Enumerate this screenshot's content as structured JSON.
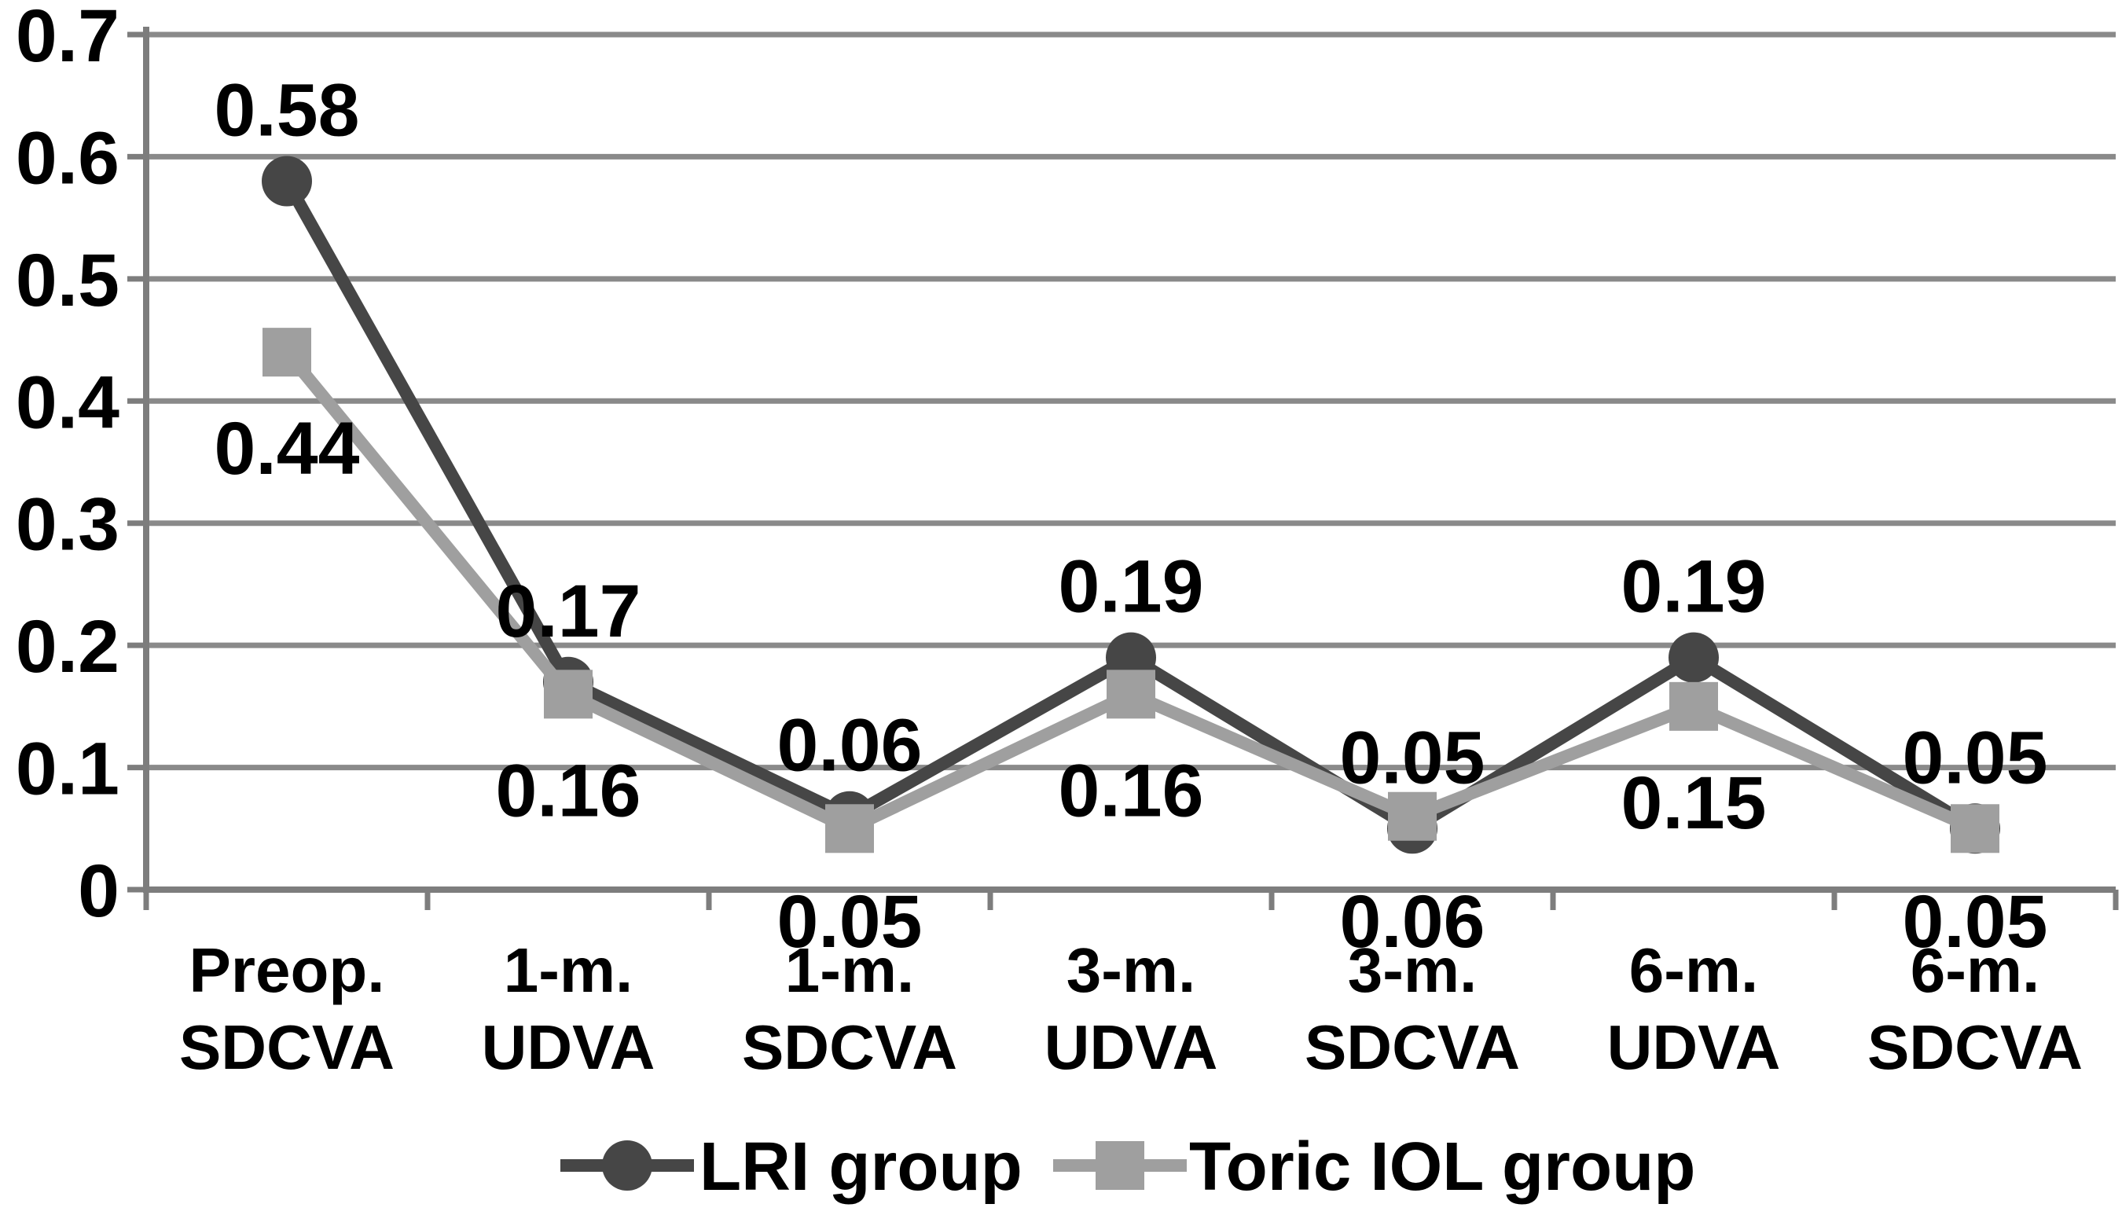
{
  "chart_data": {
    "type": "line",
    "title": "",
    "xlabel": "",
    "ylabel": "",
    "categories": [
      "Preop.\nSDCVA",
      "1-m.\nUDVA",
      "1-m.\nSDCVA",
      "3-m.\nUDVA",
      "3-m.\nSDCVA",
      "6-m.\nUDVA",
      "6-m.\nSDCVA"
    ],
    "series": [
      {
        "name": "LRI group",
        "marker": "circle",
        "color": "#464646",
        "values": [
          0.58,
          0.17,
          0.06,
          0.19,
          0.05,
          0.19,
          0.05
        ],
        "data_labels": [
          "0.58",
          "0.17",
          "0.06",
          "0.19",
          "0.05",
          "0.19",
          "0.05"
        ],
        "label_positions": [
          "above",
          "above",
          "above",
          "above",
          "above",
          "above",
          "above"
        ]
      },
      {
        "name": "Toric IOL group",
        "marker": "square",
        "color": "#9f9f9f",
        "values": [
          0.44,
          0.16,
          0.05,
          0.16,
          0.06,
          0.15,
          0.05
        ],
        "data_labels": [
          "0.44",
          "0.16",
          "0.05",
          "0.16",
          "0.06",
          "0.15",
          "0.05"
        ],
        "label_positions": [
          "below",
          "below",
          "below-axis",
          "below",
          "below-axis",
          "below",
          "below-axis"
        ]
      }
    ],
    "ylim": [
      0,
      0.7
    ],
    "yticks": [
      {
        "label": "0",
        "value": 0.0
      },
      {
        "label": "0.1",
        "value": 0.1
      },
      {
        "label": "0.2",
        "value": 0.2
      },
      {
        "label": "0.3",
        "value": 0.3
      },
      {
        "label": "0.4",
        "value": 0.4
      },
      {
        "label": "0.5",
        "value": 0.5
      },
      {
        "label": "0.6",
        "value": 0.6
      },
      {
        "label": "0.7",
        "value": 0.7
      }
    ],
    "grid": "horizontal",
    "legend_position": "bottom"
  },
  "colors": {
    "background": "#ffffff",
    "text": "#000000",
    "gridline": "#8a8a8a",
    "axis": "#7d7d7d",
    "lri_series": "#464646",
    "toric_series": "#9f9f9f"
  }
}
